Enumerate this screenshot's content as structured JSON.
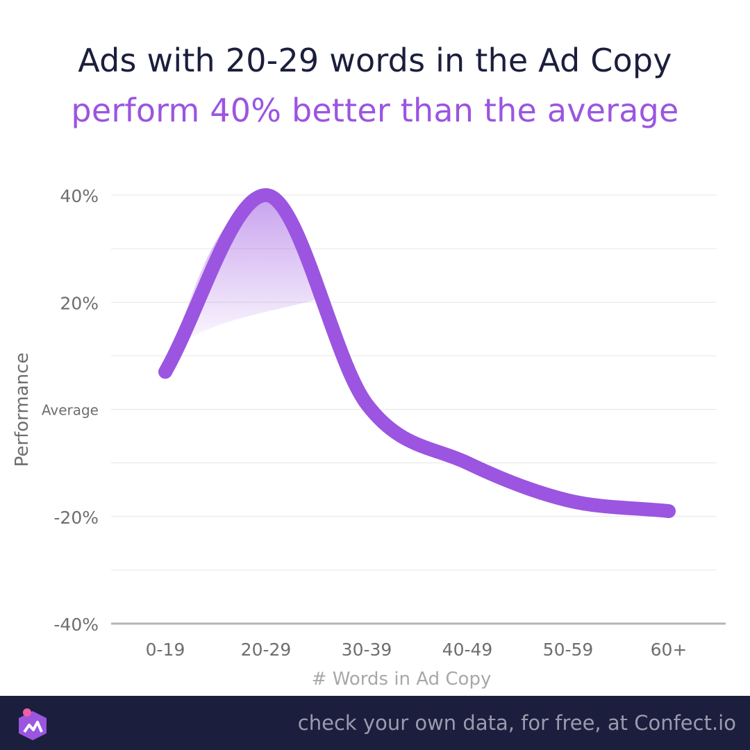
{
  "title": {
    "line1": "Ads with 20-29 words in the Ad Copy",
    "line2": "perform 40% better than the average"
  },
  "footer": {
    "text": "check your own data, for free, at Confect.io",
    "logo_icon": "confect-logo-icon"
  },
  "colors": {
    "title": "#1b1e3c",
    "accent": "#9b55e0",
    "footer_bg": "#1b1e3c",
    "footer_text": "#9a9cae",
    "axis_text": "#6e6e6e",
    "gridline": "#e6e6e6"
  },
  "chart_data": {
    "type": "line",
    "xlabel": "# Words in Ad Copy",
    "ylabel": "Performance",
    "categories": [
      "0-19",
      "20-29",
      "30-39",
      "40-49",
      "50-59",
      "60+"
    ],
    "series": [
      {
        "values": [
          7,
          40,
          1,
          -10,
          -17,
          -19
        ]
      }
    ],
    "ylim": [
      -40,
      40
    ],
    "yticks": [
      {
        "value": 40,
        "label": "40%"
      },
      {
        "value": 20,
        "label": "20%"
      },
      {
        "value": 0,
        "label": "Average"
      },
      {
        "value": -20,
        "label": "-20%"
      },
      {
        "value": -40,
        "label": "-40%"
      }
    ],
    "grid": true,
    "legend": "none"
  }
}
